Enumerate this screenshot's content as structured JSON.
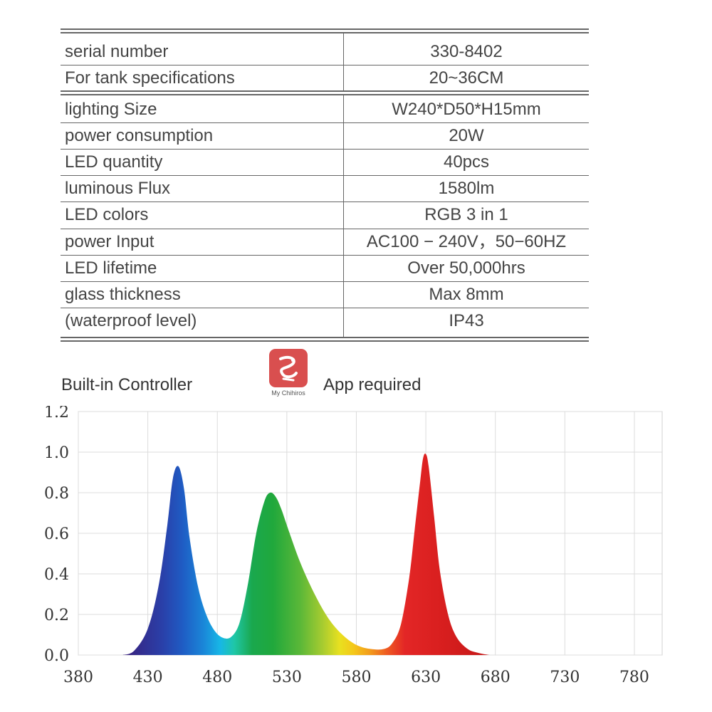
{
  "spec_table": {
    "rows": [
      {
        "label": "serial number",
        "value": "330-8402"
      },
      {
        "label": "For tank specifications",
        "value": "20~36CM"
      },
      {
        "label": "lighting Size",
        "value": "W240*D50*H15mm"
      },
      {
        "label": "power consumption",
        "value": "20W"
      },
      {
        "label": "LED quantity",
        "value": "40pcs"
      },
      {
        "label": "luminous Flux",
        "value": "1580lm"
      },
      {
        "label": "LED colors",
        "value": "RGB 3 in 1"
      },
      {
        "label": "power Input",
        "value": "AC100 − 240V，50−60HZ"
      },
      {
        "label": "LED lifetime",
        "value": "Over 50,000hrs"
      },
      {
        "label": "glass thickness",
        "value": "Max 8mm"
      },
      {
        "label": "(waterproof level)",
        "value": "IP43"
      }
    ]
  },
  "controller": {
    "title": "Built-in Controller",
    "app_name": "My Chihiros",
    "app_note": "App required",
    "logo_icon": "dragon-app-icon",
    "logo_color": "#d94f4f"
  },
  "chart_data": {
    "type": "area",
    "x": [
      412,
      420,
      430,
      438,
      444,
      448,
      452,
      456,
      460,
      466,
      472,
      478,
      484,
      490,
      496,
      502,
      508,
      514,
      518,
      522,
      526,
      532,
      540,
      550,
      560,
      570,
      580,
      590,
      600,
      606,
      612,
      618,
      622,
      626,
      628,
      630,
      632,
      636,
      640,
      646,
      652,
      660,
      668,
      676
    ],
    "y": [
      0.0,
      0.02,
      0.13,
      0.35,
      0.64,
      0.87,
      0.93,
      0.82,
      0.58,
      0.34,
      0.2,
      0.12,
      0.085,
      0.09,
      0.16,
      0.35,
      0.6,
      0.76,
      0.8,
      0.78,
      0.72,
      0.6,
      0.45,
      0.3,
      0.18,
      0.1,
      0.05,
      0.03,
      0.03,
      0.06,
      0.15,
      0.38,
      0.62,
      0.86,
      0.97,
      0.99,
      0.93,
      0.68,
      0.42,
      0.2,
      0.09,
      0.03,
      0.01,
      0.0
    ],
    "xlim": [
      380,
      800
    ],
    "ylim": [
      0,
      1.2
    ],
    "xticks": [
      "380",
      "430",
      "480",
      "530",
      "580",
      "630",
      "680",
      "730",
      "780"
    ],
    "yticks": [
      "0.0",
      "0.2",
      "0.4",
      "0.6",
      "0.8",
      "1.0",
      "1.2"
    ],
    "grid": true,
    "fill": "wavelength-spectrum-gradient"
  }
}
